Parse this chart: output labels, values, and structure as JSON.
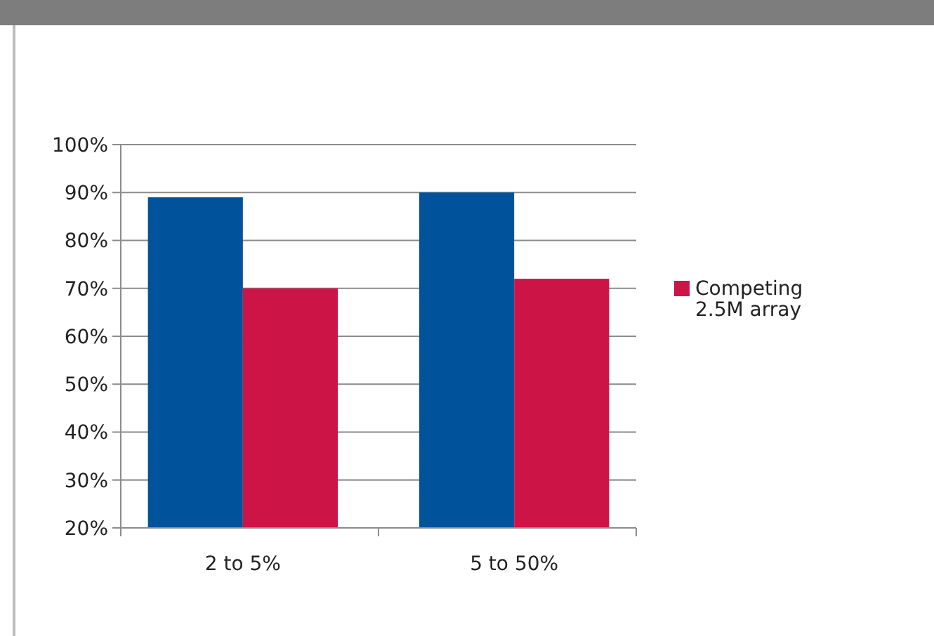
{
  "chart_data": {
    "type": "bar",
    "categories": [
      "2 to 5%",
      "5 to 50%"
    ],
    "series": [
      {
        "color": "#00539b",
        "values": [
          89,
          90
        ]
      },
      {
        "name": "Competing 2.5M array",
        "color": "#cc1447",
        "values": [
          70,
          72
        ]
      }
    ],
    "ylim": [
      20,
      100
    ],
    "yticks": [
      {
        "value": 20,
        "label": "20%"
      },
      {
        "value": 30,
        "label": "30%"
      },
      {
        "value": 40,
        "label": "40%"
      },
      {
        "value": 50,
        "label": "50%"
      },
      {
        "value": 60,
        "label": "60%"
      },
      {
        "value": 70,
        "label": "70%"
      },
      {
        "value": 80,
        "label": "80%"
      },
      {
        "value": 90,
        "label": "90%"
      },
      {
        "value": 100,
        "label": "100%"
      }
    ],
    "grid": "y",
    "legend": "right"
  }
}
